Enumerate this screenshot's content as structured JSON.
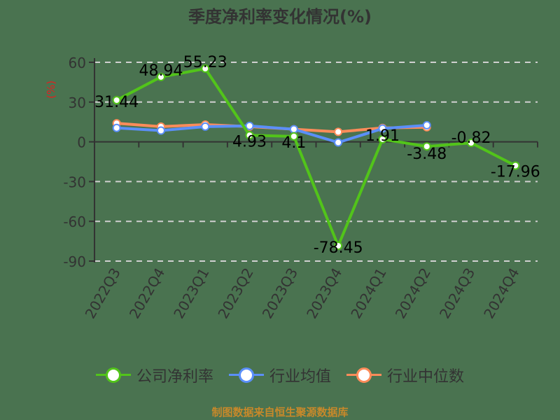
{
  "title": "季度净利率变化情况(%)",
  "footer": "制图数据来自恒生聚源数据库",
  "legend": [
    {
      "label": "公司净利率",
      "color": "#52c41a"
    },
    {
      "label": "行业均值",
      "color": "#5b8ff9"
    },
    {
      "label": "行业中位数",
      "color": "#ff8c5a"
    }
  ],
  "chart_data": {
    "type": "line",
    "title": "季度净利率变化情况(%)",
    "xlabel": "",
    "ylabel": "(%)",
    "ylim": [
      -90,
      60
    ],
    "yticks": [
      60,
      30,
      0,
      -30,
      -60,
      -90
    ],
    "grid": "horizontal dashed",
    "legend_position": "bottom",
    "categories": [
      "2022Q3",
      "2022Q4",
      "2023Q1",
      "2023Q2",
      "2023Q3",
      "2023Q4",
      "2024Q1",
      "2024Q2",
      "2024Q3",
      "2024Q4"
    ],
    "series": [
      {
        "name": "公司净利率",
        "color": "#52c41a",
        "values": [
          31.44,
          48.94,
          55.23,
          4.93,
          4.1,
          -78.45,
          1.91,
          -3.48,
          -0.82,
          -17.96
        ],
        "labels": [
          "31.44",
          "48.94",
          "55.23",
          "4.93",
          "4.1",
          "-78.45",
          "1.91",
          "-3.48",
          "-0.82",
          "-17.96"
        ]
      },
      {
        "name": "行业均值",
        "color": "#5b8ff9",
        "values": [
          10.5,
          8.5,
          11.5,
          12,
          9.5,
          -0.5,
          10,
          12.5,
          null,
          null
        ]
      },
      {
        "name": "行业中位数",
        "color": "#ff8c5a",
        "values": [
          14,
          11.5,
          13,
          11.5,
          9.5,
          7.5,
          10.5,
          11,
          null,
          null
        ]
      }
    ]
  }
}
